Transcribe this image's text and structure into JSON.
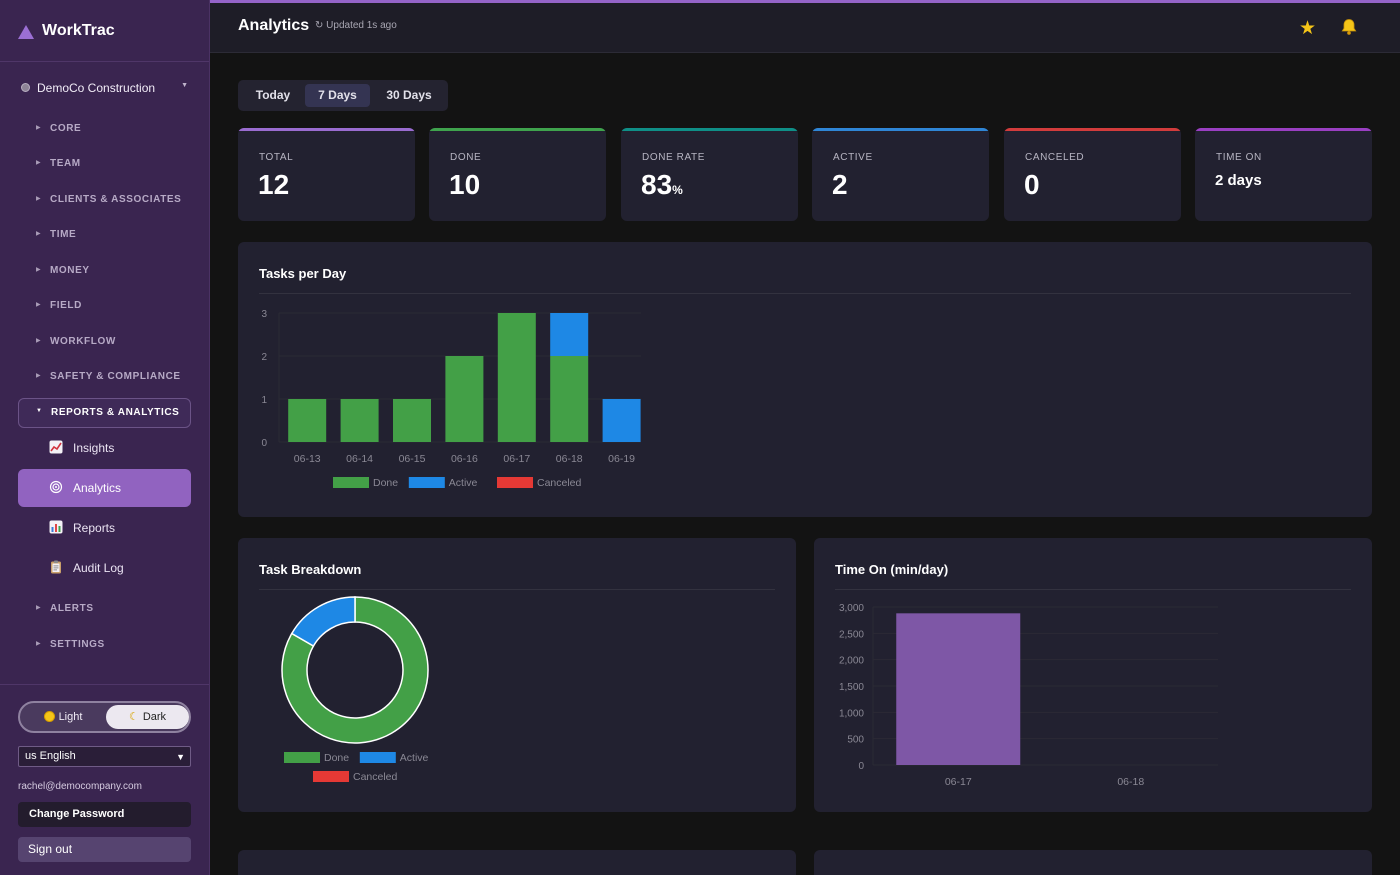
{
  "sidebar": {
    "brand": "WorkTrac",
    "org": "DemoCo Construction",
    "sections": [
      {
        "label": "CORE"
      },
      {
        "label": "TEAM"
      },
      {
        "label": "CLIENTS & ASSOCIATES"
      },
      {
        "label": "TIME"
      },
      {
        "label": "MONEY"
      },
      {
        "label": "FIELD"
      },
      {
        "label": "WORKFLOW"
      },
      {
        "label": "SAFETY & COMPLIANCE"
      },
      {
        "label": "REPORTS & ANALYTICS"
      },
      {
        "label": "ALERTS"
      },
      {
        "label": "SETTINGS"
      }
    ],
    "sub_items": [
      {
        "label": "Insights",
        "icon": "chart-up-icon"
      },
      {
        "label": "Analytics",
        "icon": "target-icon"
      },
      {
        "label": "Reports",
        "icon": "bar-chart-icon"
      },
      {
        "label": "Audit Log",
        "icon": "clipboard-icon"
      }
    ],
    "theme": {
      "light": "Light",
      "dark": "Dark",
      "selected": "Dark"
    },
    "language": "us English",
    "email": "rachel@democompany.com",
    "change_password": "Change Password",
    "sign_out": "Sign out"
  },
  "header": {
    "title": "Analytics",
    "updated": "↻ Updated 1s ago"
  },
  "range_tabs": [
    {
      "label": "Today"
    },
    {
      "label": "7 Days",
      "selected": true
    },
    {
      "label": "30 Days"
    }
  ],
  "kpis": [
    {
      "label": "TOTAL",
      "value": "12",
      "color": "#9a6cd0"
    },
    {
      "label": "DONE",
      "value": "10",
      "color": "#3fa34d"
    },
    {
      "label": "DONE RATE",
      "value": "83",
      "unit": "%",
      "color": "#0f8f87"
    },
    {
      "label": "ACTIVE",
      "value": "2",
      "color": "#2f86d6"
    },
    {
      "label": "CANCELED",
      "value": "0",
      "color": "#d23c3c"
    },
    {
      "label": "TIME ON",
      "value": "2 days",
      "color": "#9a3fc2"
    }
  ],
  "colors": {
    "done": "#43a047",
    "active": "#1e88e5",
    "canceled": "#e53935",
    "time_on": "#7e57a6"
  },
  "cards": {
    "tasks_per_day": "Tasks per Day",
    "breakdown": "Task Breakdown",
    "time_on": "Time On (min/day)"
  },
  "chart_data": [
    {
      "type": "bar",
      "title": "Tasks per Day",
      "stacked": true,
      "categories": [
        "06-13",
        "06-14",
        "06-15",
        "06-16",
        "06-17",
        "06-18",
        "06-19"
      ],
      "series": [
        {
          "name": "Done",
          "values": [
            1,
            1,
            1,
            2,
            3,
            2,
            0
          ]
        },
        {
          "name": "Active",
          "values": [
            0,
            0,
            0,
            0,
            0,
            1,
            1
          ]
        },
        {
          "name": "Canceled",
          "values": [
            0,
            0,
            0,
            0,
            0,
            0,
            0
          ]
        }
      ],
      "ylim": [
        0,
        3
      ],
      "yticks": [
        "0",
        "1",
        "2",
        "3"
      ],
      "legend": "bottom"
    },
    {
      "type": "pie",
      "title": "Task Breakdown",
      "donut": true,
      "categories": [
        "Done",
        "Active",
        "Canceled"
      ],
      "values": [
        10,
        2,
        0
      ],
      "legend": "bottom"
    },
    {
      "type": "bar",
      "title": "Time On (min/day)",
      "categories": [
        "06-17",
        "06-18"
      ],
      "values": [
        2880,
        0
      ],
      "ylim": [
        0,
        3000
      ],
      "yticks": [
        "0",
        "500",
        "1,000",
        "1,500",
        "2,000",
        "2,500",
        "3,000"
      ]
    }
  ]
}
